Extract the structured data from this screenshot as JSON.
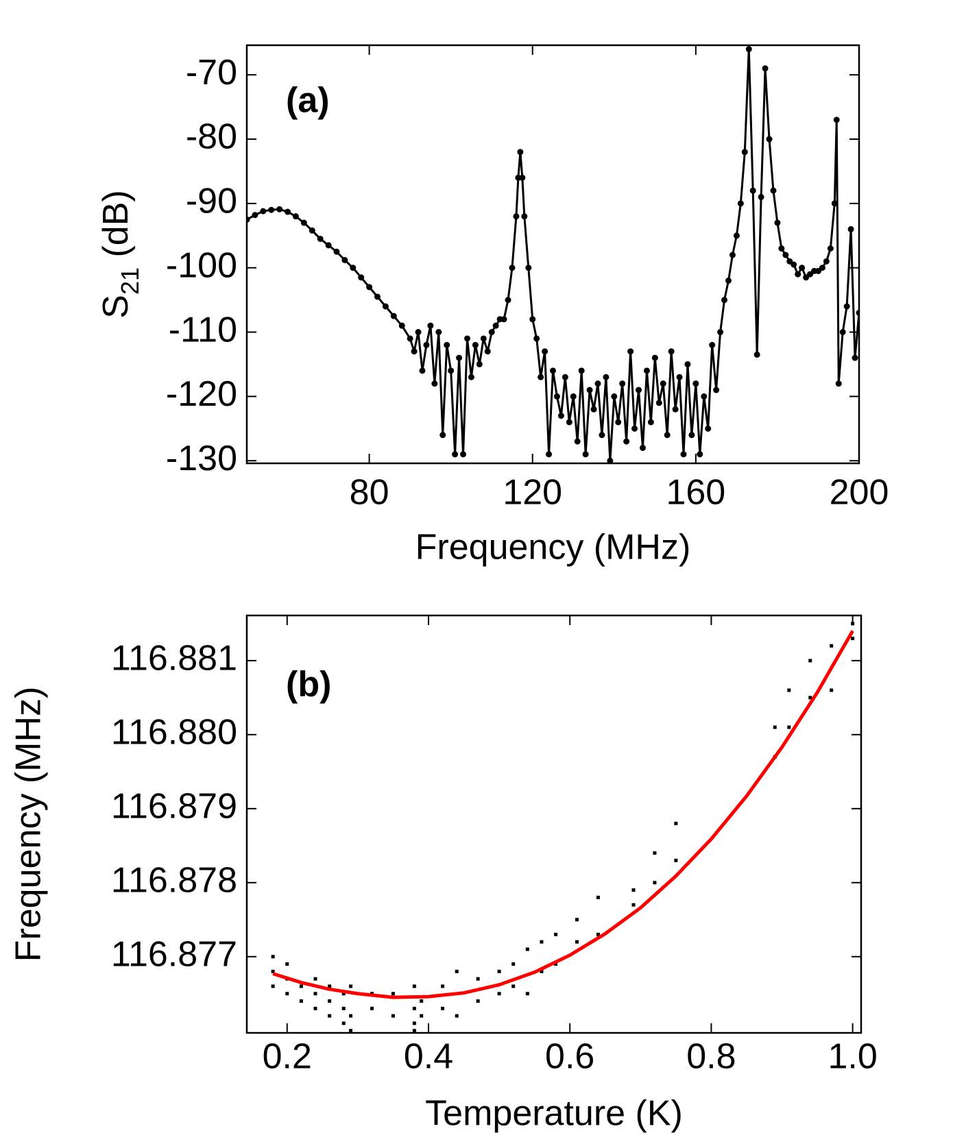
{
  "chart_data": [
    {
      "type": "line",
      "annotation": "(a)",
      "x_label": "Frequency (MHz)",
      "y_label": [
        "S",
        "21",
        " (dB)"
      ],
      "color": "#000000",
      "markers": true,
      "xlim": [
        50,
        200
      ],
      "xticks": [
        80,
        120,
        160,
        200
      ],
      "ylim": [
        -130.4,
        -65.4
      ],
      "yticks": [
        -70,
        -80,
        -90,
        -100,
        -110,
        -120,
        -130
      ],
      "x": [
        50,
        52,
        54,
        56,
        58,
        60,
        62,
        64,
        66,
        68,
        70,
        72,
        74,
        76,
        78,
        80,
        82,
        84,
        86,
        88,
        90,
        91,
        92,
        93,
        94,
        95,
        96,
        97,
        98,
        99,
        100,
        101,
        102,
        103,
        104,
        105,
        106,
        107,
        108,
        109,
        110,
        111,
        112,
        113,
        114,
        115,
        116,
        116.5,
        117,
        117.5,
        118,
        119,
        120,
        121,
        122,
        123,
        124,
        125,
        126,
        127,
        128,
        129,
        130,
        131,
        132,
        133,
        134,
        135,
        136,
        137,
        138,
        139,
        140,
        141,
        142,
        143,
        144,
        145,
        146,
        147,
        148,
        149,
        150,
        151,
        152,
        153,
        154,
        155,
        156,
        157,
        158,
        159,
        160,
        161,
        162,
        163,
        164,
        165,
        166,
        167,
        168,
        169,
        170,
        171,
        172,
        173,
        174,
        175,
        176,
        177,
        178,
        179,
        180,
        181,
        182,
        183,
        184,
        185,
        186,
        187,
        188,
        189,
        190,
        191,
        192,
        193,
        194,
        194.5,
        195,
        196,
        197,
        198,
        199,
        200
      ],
      "values": [
        -92.5,
        -91.8,
        -91.2,
        -91,
        -90.9,
        -91.3,
        -92,
        -93,
        -94.2,
        -95.5,
        -96.5,
        -97.5,
        -98.8,
        -100,
        -101.5,
        -103,
        -104.5,
        -106,
        -107.5,
        -109,
        -111,
        -113,
        -110,
        -116,
        -112,
        -109,
        -118,
        -110,
        -126,
        -112,
        -116,
        -129,
        -114,
        -129,
        -111,
        -117,
        -112,
        -115,
        -111,
        -113,
        -110,
        -109,
        -108,
        -108,
        -105,
        -100,
        -92,
        -86,
        -82,
        -86,
        -92,
        -100,
        -108,
        -111,
        -117,
        -113,
        -129,
        -116,
        -120,
        -123,
        -117,
        -124,
        -120,
        -127,
        -116,
        -129,
        -119,
        -122,
        -118,
        -126,
        -117,
        -130,
        -120,
        -124,
        -118,
        -127,
        -113,
        -125,
        -119,
        -128,
        -116,
        -124,
        -114,
        -121,
        -118,
        -126,
        -113,
        -122,
        -117,
        -129,
        -115,
        -126,
        -118,
        -129,
        -120,
        -125,
        -112,
        -119,
        -110,
        -105,
        -102,
        -98,
        -95,
        -90,
        -82,
        -66,
        -88,
        -113.5,
        -89,
        -69,
        -80,
        -88,
        -93,
        -97,
        -98,
        -99,
        -99.5,
        -101,
        -100,
        -101.5,
        -101,
        -100.5,
        -100.5,
        -100,
        -99,
        -97,
        -90,
        -77,
        -118,
        -110,
        -106,
        -94,
        -114,
        -107
      ]
    },
    {
      "type": "scatter",
      "annotation": "(b)",
      "x_label": "Temperature (K)",
      "y_label": "Frequency (MHz)",
      "color": "#000000",
      "xlim": [
        0.143,
        1.012
      ],
      "xticks": [
        0.2,
        0.4,
        0.6,
        0.8,
        {
          "value": 1.0,
          "label": "1.0"
        }
      ],
      "ylim": [
        116.87597,
        116.88161
      ],
      "yticks": [
        116.881,
        {
          "value": 116.88,
          "label": "116.880"
        },
        116.879,
        116.878,
        116.877
      ],
      "x": [
        0.18,
        0.18,
        0.18,
        0.2,
        0.2,
        0.2,
        0.22,
        0.22,
        0.24,
        0.24,
        0.24,
        0.26,
        0.26,
        0.26,
        0.28,
        0.28,
        0.28,
        0.29,
        0.29,
        0.29,
        0.32,
        0.32,
        0.35,
        0.35,
        0.38,
        0.38,
        0.38,
        0.38,
        0.39,
        0.39,
        0.42,
        0.42,
        0.44,
        0.44,
        0.47,
        0.47,
        0.5,
        0.5,
        0.52,
        0.52,
        0.54,
        0.54,
        0.56,
        0.56,
        0.58,
        0.58,
        0.61,
        0.61,
        0.64,
        0.64,
        0.69,
        0.69,
        0.72,
        0.72,
        0.75,
        0.75,
        0.89,
        0.89,
        0.91,
        0.91,
        0.94,
        0.94,
        0.97,
        0.97,
        1.0,
        1.0
      ],
      "values": [
        116.8768,
        116.877,
        116.8766,
        116.8767,
        116.8765,
        116.8769,
        116.8766,
        116.8764,
        116.8765,
        116.8763,
        116.8767,
        116.8766,
        116.8764,
        116.8762,
        116.8765,
        116.8763,
        116.8761,
        116.8766,
        116.8762,
        116.876,
        116.8765,
        116.8763,
        116.8765,
        116.8762,
        116.8766,
        116.8763,
        116.8761,
        116.876,
        116.8764,
        116.8762,
        116.8766,
        116.8763,
        116.8768,
        116.8762,
        116.8767,
        116.8764,
        116.8768,
        116.8765,
        116.8769,
        116.8766,
        116.8771,
        116.8765,
        116.8772,
        116.8768,
        116.8773,
        116.8769,
        116.8775,
        116.8772,
        116.8778,
        116.8773,
        116.8779,
        116.8777,
        116.8784,
        116.878,
        116.8788,
        116.8783,
        116.8801,
        116.8797,
        116.8806,
        116.8801,
        116.881,
        116.8805,
        116.8812,
        116.8806,
        116.8815,
        116.8813
      ],
      "fit": {
        "color": "#ff0000",
        "x": [
          0.18,
          0.22,
          0.26,
          0.3,
          0.35,
          0.4,
          0.45,
          0.5,
          0.55,
          0.6,
          0.65,
          0.7,
          0.75,
          0.8,
          0.85,
          0.9,
          0.95,
          1.0
        ],
        "values": [
          116.87677,
          116.87665,
          116.87656,
          116.8765,
          116.87645,
          116.87646,
          116.87651,
          116.87662,
          116.87679,
          116.87702,
          116.87731,
          116.87766,
          116.87809,
          116.87859,
          116.87917,
          116.87983,
          116.88057,
          116.8814
        ]
      }
    }
  ]
}
